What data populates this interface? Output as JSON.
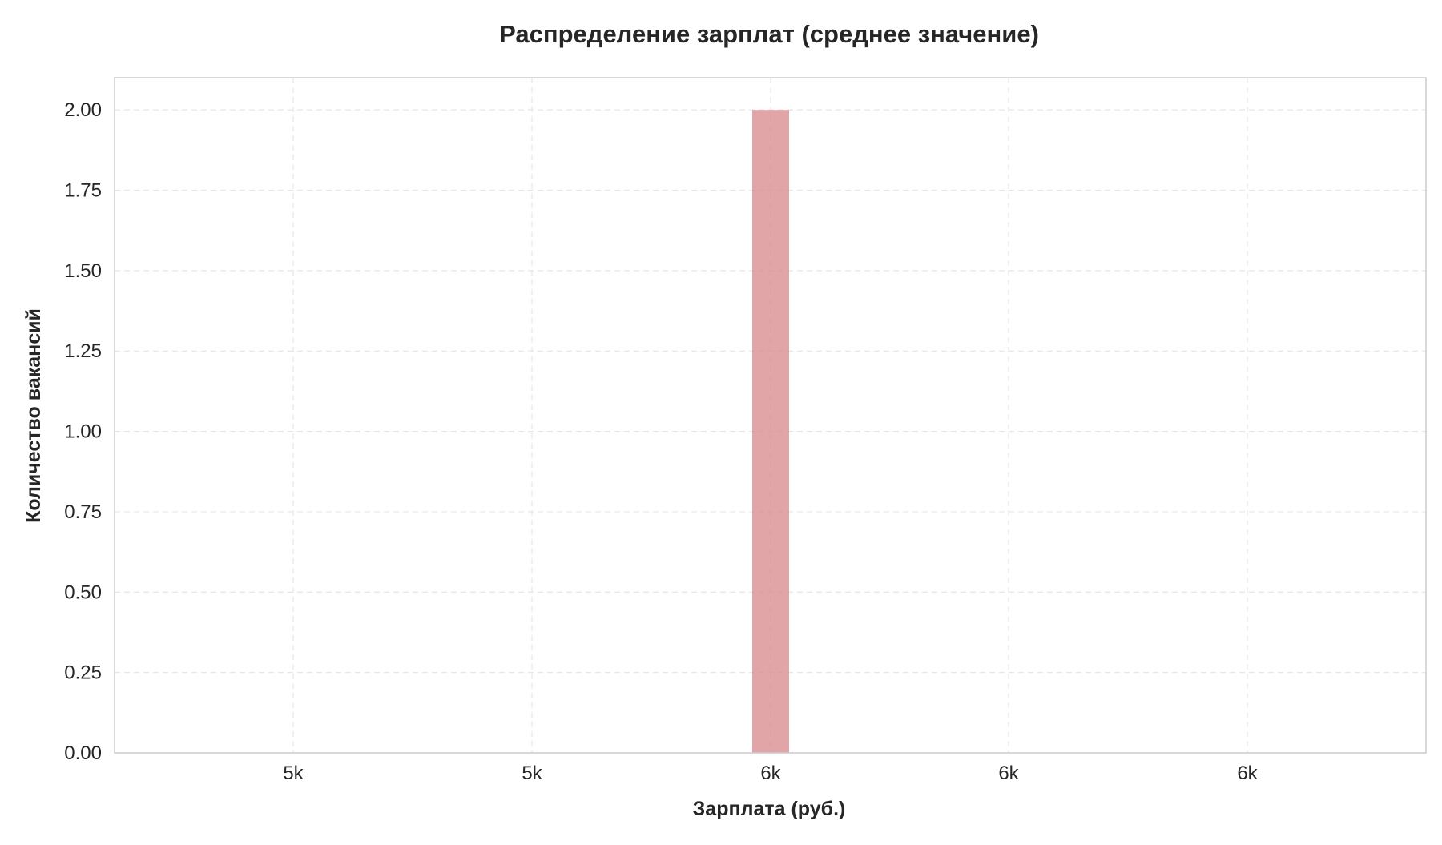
{
  "chart_data": {
    "type": "bar",
    "title": "Распределение зарплат (среднее значение)",
    "xlabel": "Зарплата (руб.)",
    "ylabel": "Количество вакансий",
    "x_ticks": [
      "5k",
      "5k",
      "6k",
      "6k",
      "6k"
    ],
    "y_ticks": [
      "0.00",
      "0.25",
      "0.50",
      "0.75",
      "1.00",
      "1.25",
      "1.50",
      "1.75",
      "2.00"
    ],
    "ylim": [
      0,
      2.1
    ],
    "grid": true,
    "bars": [
      {
        "label": "6k",
        "value": 2
      }
    ]
  },
  "colors": {
    "bar": "#d98e92",
    "grid": "#e6e6e6",
    "axis": "#cccccc",
    "text": "#262626"
  }
}
